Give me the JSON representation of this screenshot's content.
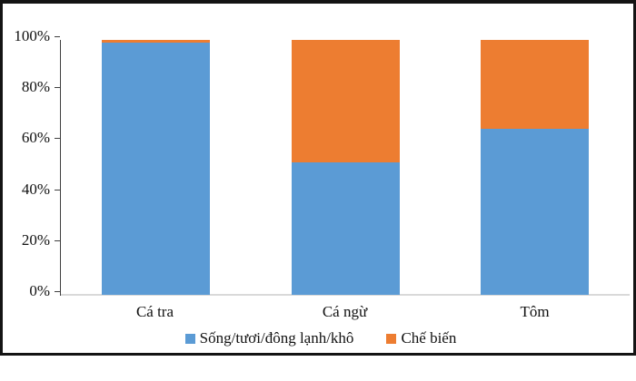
{
  "chart_data": {
    "type": "bar",
    "stacked": true,
    "title": "",
    "xlabel": "",
    "ylabel": "",
    "categories": [
      "Cá tra",
      "Cá ngừ",
      "Tôm"
    ],
    "series": [
      {
        "name": "Sống/tươi/đông lạnh/khô",
        "color": "#5B9BD5",
        "values": [
          99,
          52,
          65
        ]
      },
      {
        "name": "Chế biến",
        "color": "#ED7D31",
        "values": [
          1,
          48,
          35
        ]
      }
    ],
    "y_ticks": [
      0,
      20,
      40,
      60,
      80,
      100
    ],
    "y_tick_labels": [
      "0%",
      "20%",
      "40%",
      "60%",
      "80%",
      "100%"
    ],
    "ylim": [
      0,
      100
    ],
    "grid": false,
    "legend_position": "bottom",
    "colors": {
      "axis_line": "#3f3f3f",
      "tick_mark": "#3f3f3f",
      "baseline": "#d9d9d9",
      "frame_border": "#141414",
      "text": "#111111",
      "background": "#ffffff"
    }
  }
}
